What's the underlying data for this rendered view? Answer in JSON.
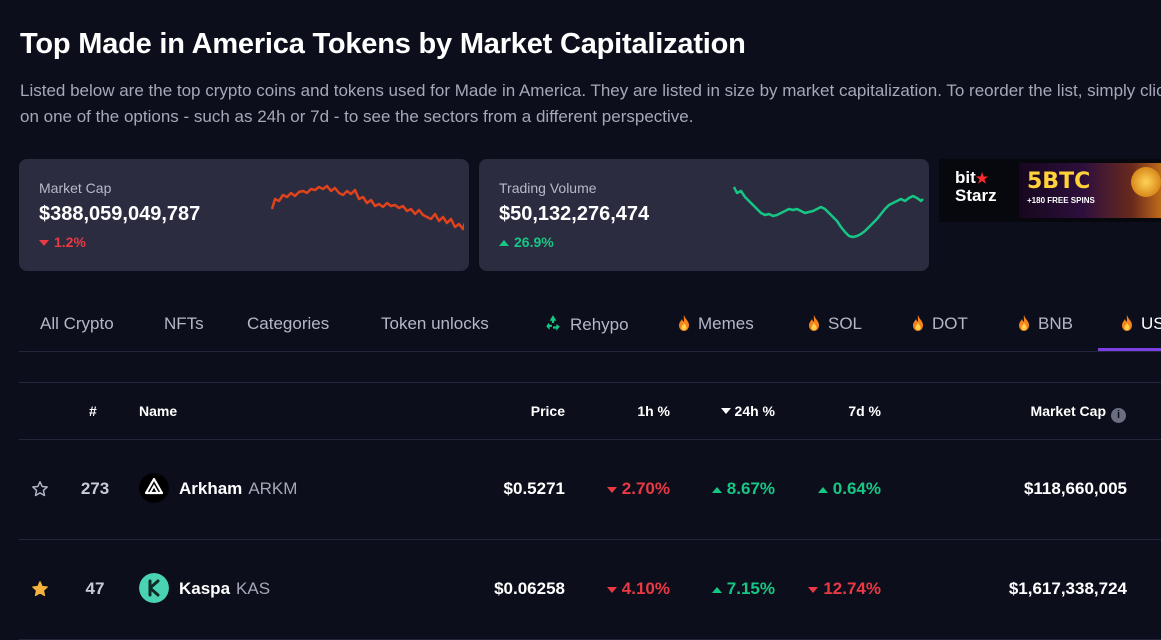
{
  "page": {
    "title": "Top Made in America Tokens by Market Capitalization",
    "description": "Listed below are the top crypto coins and tokens used for Made in America. They are listed in size by market capitalization. To reorder the list, simply click on one of the options - such as 24h or 7d - to see the sectors from a different perspective."
  },
  "stats": {
    "market_cap": {
      "label": "Market Cap",
      "value": "$388,059,049,787",
      "change": "1.2%",
      "direction": "down"
    },
    "trading_volume": {
      "label": "Trading Volume",
      "value": "$50,132,276,474",
      "change": "26.9%",
      "direction": "up"
    }
  },
  "ad": {
    "brand_line1": "bit",
    "brand_line2": "Starz",
    "headline": "5BTC",
    "subline": "+180 FREE SPINS"
  },
  "tabs": [
    {
      "label": "All Crypto",
      "icon": ""
    },
    {
      "label": "NFTs",
      "icon": ""
    },
    {
      "label": "Categories",
      "icon": ""
    },
    {
      "label": "Token unlocks",
      "icon": ""
    },
    {
      "label": "Rehypo",
      "icon": "recycle-icon"
    },
    {
      "label": "Memes",
      "icon": "flame-icon"
    },
    {
      "label": "SOL",
      "icon": "flame-icon"
    },
    {
      "label": "DOT",
      "icon": "flame-icon"
    },
    {
      "label": "BNB",
      "icon": "flame-icon"
    },
    {
      "label": "US",
      "icon": "flame-icon",
      "active": true
    }
  ],
  "table": {
    "headers": {
      "rank": "#",
      "name": "Name",
      "price": "Price",
      "h1": "1h %",
      "h24": "24h %",
      "d7": "7d %",
      "market_cap": "Market Cap"
    },
    "rows": [
      {
        "starred": false,
        "rank": "273",
        "name": "Arkham",
        "symbol": "ARKM",
        "price": "$0.5271",
        "h1": "2.70%",
        "h1_dir": "down",
        "h24": "8.67%",
        "h24_dir": "up",
        "d7": "0.64%",
        "d7_dir": "up",
        "market_cap": "$118,660,005"
      },
      {
        "starred": true,
        "rank": "47",
        "name": "Kaspa",
        "symbol": "KAS",
        "price": "$0.06258",
        "h1": "4.10%",
        "h1_dir": "down",
        "h24": "7.15%",
        "h24_dir": "up",
        "d7": "12.74%",
        "d7_dir": "down",
        "market_cap": "$1,617,338,724"
      }
    ]
  },
  "colors": {
    "up": "#16c784",
    "down": "#ea3943",
    "accent": "#7b3fe4",
    "card": "#2b2c40",
    "background": "#0d0e1c"
  }
}
